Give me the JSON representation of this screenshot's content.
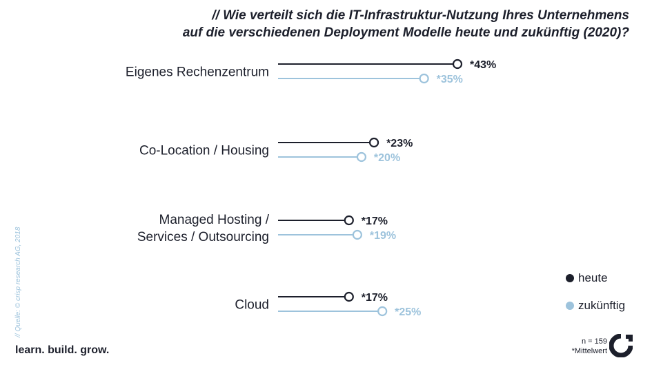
{
  "title_line1": "// Wie verteilt sich die IT-Infrastruktur-Nutzung Ihres Unternehmens",
  "title_line2": "auf die verschiedenen Deployment Modelle heute und zukünftig (2020)?",
  "source": "// Quelle: © crisp research AG, 2018",
  "tagline": "learn. build. grow.",
  "sample_size": "n = 159",
  "footnote": "*Mittelwert",
  "colors": {
    "heute": "#1c1f2b",
    "zukuenftig": "#9dc3dc"
  },
  "legend": [
    {
      "name": "heute",
      "color": "#1c1f2b"
    },
    {
      "name": "zukünftig",
      "color": "#9dc3dc"
    }
  ],
  "chart_data": {
    "type": "line",
    "subtype": "lollipop",
    "categories": [
      [
        "Eigenes Rechenzentrum"
      ],
      [
        "Co-Location / Housing"
      ],
      [
        "Managed Hosting /",
        "Services / Outsourcing"
      ],
      [
        "Cloud"
      ]
    ],
    "series": [
      {
        "name": "heute",
        "values": [
          43,
          23,
          17,
          17
        ],
        "labels": [
          "*43%",
          "*23%",
          "*17%",
          "*17%"
        ],
        "color": "#1c1f2b"
      },
      {
        "name": "zukünftig",
        "values": [
          35,
          20,
          19,
          25
        ],
        "labels": [
          "*35%",
          "*20%",
          "*19%",
          "*25%"
        ],
        "color": "#9dc3dc"
      }
    ],
    "xlim": [
      0,
      50
    ],
    "grid": false,
    "legend_position": "bottom-right"
  }
}
